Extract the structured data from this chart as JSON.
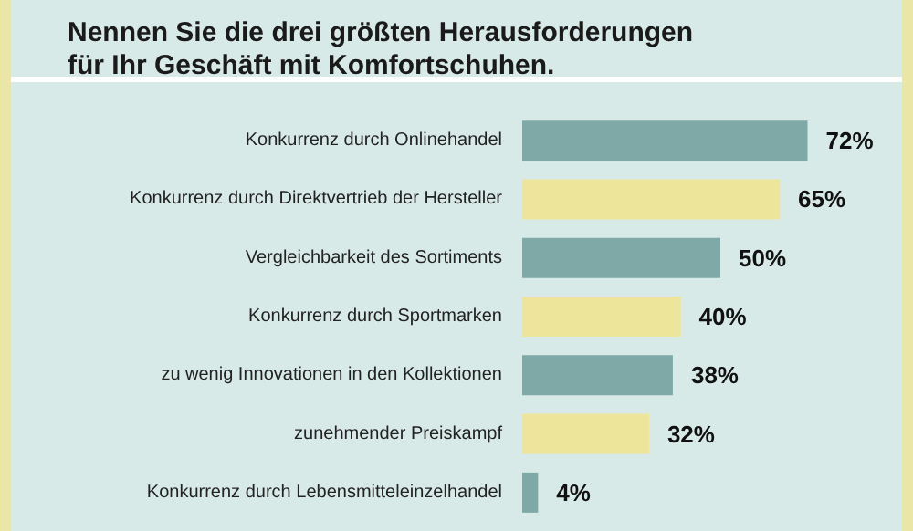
{
  "chart_data": {
    "type": "bar",
    "orientation": "horizontal",
    "title": "Nennen Sie die drei größten Herausforderungen\nfür Ihr Geschäft mit Komfortschuhen.",
    "categories": [
      "Konkurrenz durch Onlinehandel",
      "Konkurrenz durch Direktvertrieb der Hersteller",
      "Vergleichbarkeit des Sortiments",
      "Konkurrenz durch Sportmarken",
      "zu wenig Innovationen in den Kollektionen",
      "zunehmender Preiskampf",
      "Konkurrenz durch Lebensmitteleinzelhandel"
    ],
    "values": [
      72,
      65,
      50,
      40,
      38,
      32,
      4
    ],
    "colors": [
      "#7fa9a6",
      "#ede69a",
      "#7fa9a6",
      "#ede69a",
      "#7fa9a6",
      "#ede69a",
      "#7fa9a6"
    ],
    "value_labels": [
      "72%",
      "65%",
      "50%",
      "40%",
      "38%",
      "32%",
      "4%"
    ]
  }
}
